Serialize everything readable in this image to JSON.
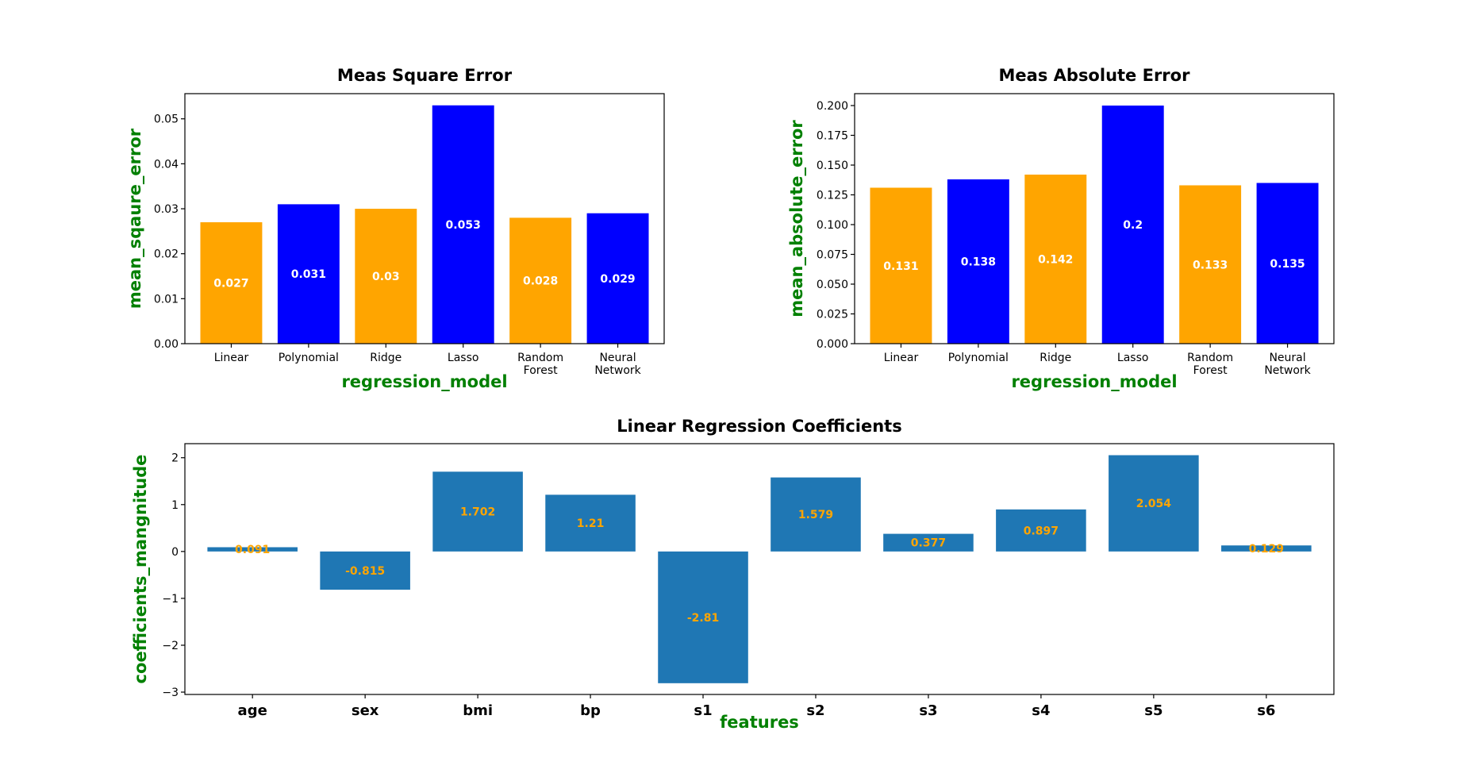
{
  "chart_data": [
    {
      "type": "bar",
      "title": "Meas Square Error",
      "xlabel": "regression_model",
      "ylabel": "mean_sqaure_error",
      "categories": [
        "Linear",
        "Polynomial",
        "Ridge",
        "Lasso",
        "Random\nForest",
        "Neural\nNetwork"
      ],
      "values": [
        0.027,
        0.031,
        0.03,
        0.053,
        0.028,
        0.029
      ],
      "value_labels": [
        "0.027",
        "0.031",
        "0.03",
        "0.053",
        "0.028",
        "0.029"
      ],
      "bar_colors": [
        "#FFA500",
        "#0000FF",
        "#FFA500",
        "#0000FF",
        "#FFA500",
        "#0000FF"
      ],
      "ylim": [
        0,
        0.0556
      ],
      "yticks": [
        0,
        0.01,
        0.02,
        0.03,
        0.04,
        0.05
      ],
      "ytick_labels": [
        "0.00",
        "0.01",
        "0.02",
        "0.03",
        "0.04",
        "0.05"
      ],
      "data_label_color": "#ffffff",
      "grid": false
    },
    {
      "type": "bar",
      "title": "Meas Absolute Error",
      "xlabel": "regression_model",
      "ylabel": "mean_absolute_error",
      "categories": [
        "Linear",
        "Polynomial",
        "Ridge",
        "Lasso",
        "Random\nForest",
        "Neural\nNetwork"
      ],
      "values": [
        0.131,
        0.138,
        0.142,
        0.2,
        0.133,
        0.135
      ],
      "value_labels": [
        "0.131",
        "0.138",
        "0.142",
        "0.2",
        "0.133",
        "0.135"
      ],
      "bar_colors": [
        "#FFA500",
        "#0000FF",
        "#FFA500",
        "#0000FF",
        "#FFA500",
        "#0000FF"
      ],
      "ylim": [
        0,
        0.21
      ],
      "yticks": [
        0,
        0.025,
        0.05,
        0.075,
        0.1,
        0.125,
        0.15,
        0.175,
        0.2
      ],
      "ytick_labels": [
        "0.000",
        "0.025",
        "0.050",
        "0.075",
        "0.100",
        "0.125",
        "0.150",
        "0.175",
        "0.200"
      ],
      "data_label_color": "#ffffff",
      "grid": false
    },
    {
      "type": "bar",
      "title": "Linear Regression Coefficients",
      "xlabel": "features",
      "ylabel": "coefficients_mangnitude",
      "categories": [
        "age",
        "sex",
        "bmi",
        "bp",
        "s1",
        "s2",
        "s3",
        "s4",
        "s5",
        "s6"
      ],
      "values": [
        0.091,
        -0.815,
        1.702,
        1.21,
        -2.81,
        1.579,
        0.377,
        0.897,
        2.054,
        0.129
      ],
      "value_labels": [
        "0.091",
        "-0.815",
        "1.702",
        "1.21",
        "-2.81",
        "1.579",
        "0.377",
        "0.897",
        "2.054",
        "0.129"
      ],
      "bar_colors": [
        "#1F77B4",
        "#1F77B4",
        "#1F77B4",
        "#1F77B4",
        "#1F77B4",
        "#1F77B4",
        "#1F77B4",
        "#1F77B4",
        "#1F77B4",
        "#1F77B4"
      ],
      "ylim": [
        -3.05,
        2.3
      ],
      "yticks": [
        -3,
        -2,
        -1,
        0,
        1,
        2
      ],
      "ytick_labels": [
        "−3",
        "−2",
        "−1",
        "0",
        "1",
        "2"
      ],
      "data_label_color": "#FFA500",
      "grid": false
    }
  ]
}
